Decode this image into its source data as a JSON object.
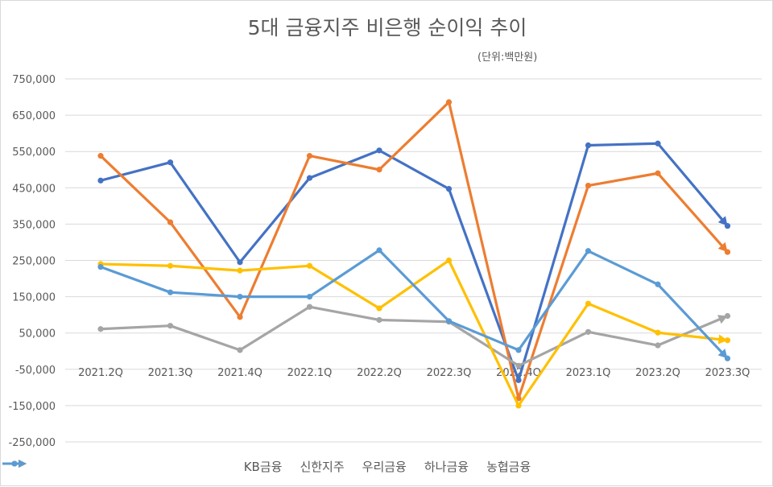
{
  "chart_data": {
    "type": "line",
    "title": "5대 금융지주 비은행 순이익 추이",
    "unit_note": "(단위:백만원)",
    "categories": [
      "2021.2Q",
      "2021.3Q",
      "2021.4Q",
      "2022.1Q",
      "2022.2Q",
      "2022.3Q",
      "2022.4Q",
      "2023.1Q",
      "2023.2Q",
      "2023.3Q"
    ],
    "ylim": [
      -250000,
      750000
    ],
    "yticks": [
      750000,
      650000,
      550000,
      450000,
      350000,
      250000,
      150000,
      50000,
      -50000,
      -150000,
      -250000
    ],
    "ytick_labels": [
      "750,000",
      "650,000",
      "550,000",
      "450,000",
      "350,000",
      "250,000",
      "150,000",
      "50,000",
      "-50,000",
      "-150,000",
      "-250,000"
    ],
    "grid": true,
    "legend_position": "bottom",
    "series": [
      {
        "name": "KB금융",
        "color": "#4472C4",
        "values": [
          470000,
          520000,
          245000,
          477000,
          553000,
          447000,
          -80000,
          567000,
          572000,
          345000
        ]
      },
      {
        "name": "신한지주",
        "color": "#ED7D31",
        "values": [
          538000,
          355000,
          94000,
          538000,
          500000,
          686000,
          -130000,
          456000,
          490000,
          273000
        ]
      },
      {
        "name": "우리금융",
        "color": "#A5A5A5",
        "values": [
          61000,
          70000,
          3000,
          122000,
          86000,
          81000,
          -40000,
          53000,
          16000,
          97000
        ]
      },
      {
        "name": "하나금융",
        "color": "#FFC000",
        "values": [
          240000,
          235000,
          222000,
          235000,
          118000,
          250000,
          -150000,
          131000,
          51000,
          30000
        ]
      },
      {
        "name": "농협금융",
        "color": "#5B9BD5",
        "values": [
          232000,
          162000,
          150000,
          150000,
          278000,
          83000,
          3000,
          276000,
          184000,
          -20000
        ]
      }
    ]
  }
}
